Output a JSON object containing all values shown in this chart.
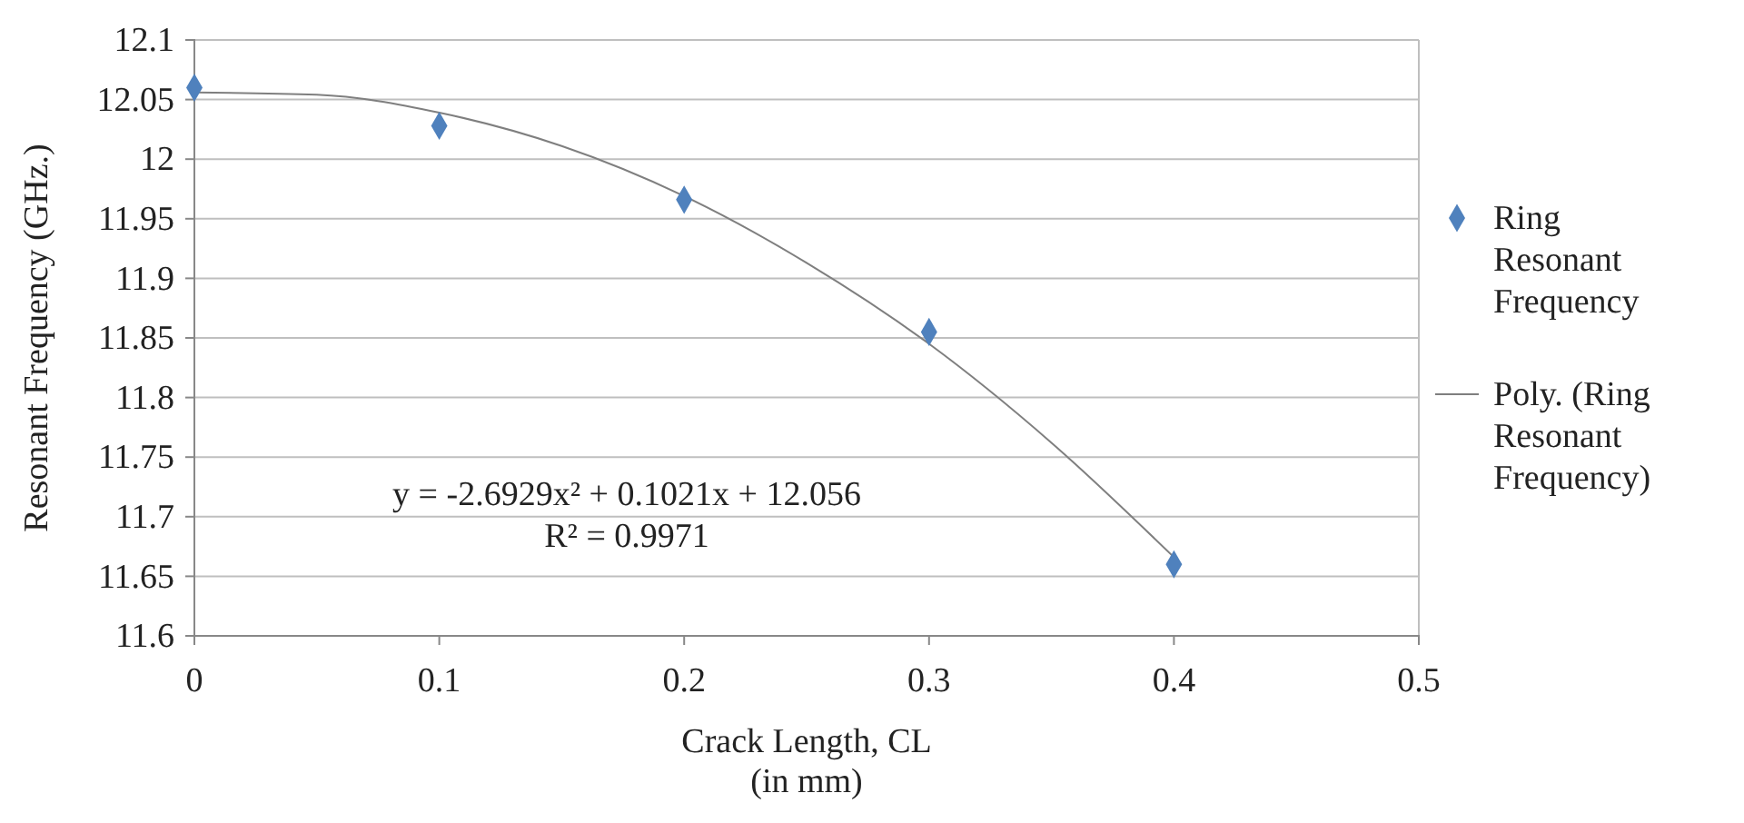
{
  "chart_data": {
    "type": "scatter",
    "xlabel": "Crack Length, CL\n(in mm)",
    "ylabel": "Resonant Frequency (GHz.)",
    "series": [
      {
        "name": "Ring Resonant Frequency",
        "color": "#4f81bd",
        "marker": "diamond",
        "x": [
          0,
          0.1,
          0.2,
          0.3,
          0.4
        ],
        "values": [
          12.06,
          12.028,
          11.966,
          11.855,
          11.66
        ]
      },
      {
        "name": "Poly. (Ring Resonant Frequency)",
        "type": "line",
        "color": "#7f7f7f",
        "line_style": "solid",
        "x": [
          0,
          0.05,
          0.1,
          0.15,
          0.2,
          0.25,
          0.3,
          0.35,
          0.4
        ],
        "values": [
          12.056,
          12.054,
          12.039,
          12.011,
          11.969,
          11.913,
          11.845,
          11.762,
          11.666
        ]
      }
    ],
    "annotations": [
      "y = -2.6929x² + 0.1021x + 12.056",
      "R² = 0.9971"
    ],
    "xlim": [
      0,
      0.5
    ],
    "xticks": [
      0,
      0.1,
      0.2,
      0.3,
      0.4,
      0.5
    ],
    "ylim": [
      11.6,
      12.1
    ],
    "yticks": [
      11.6,
      11.65,
      11.7,
      11.75,
      11.8,
      11.85,
      11.9,
      11.95,
      12,
      12.05,
      12.1
    ],
    "grid": "y",
    "legend": "right"
  }
}
